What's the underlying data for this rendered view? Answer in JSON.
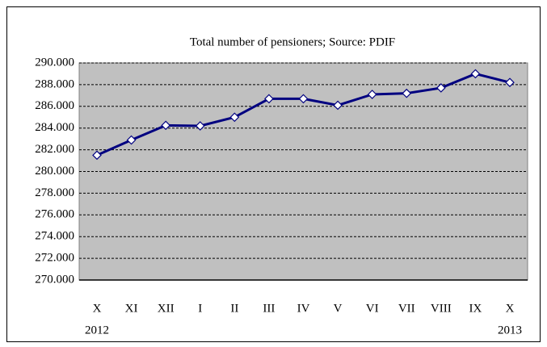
{
  "chart_data": {
    "type": "line",
    "title": "Total number of pensioners; Source: PDIF",
    "categories": [
      "X",
      "XI",
      "XII",
      "I",
      "II",
      "III",
      "IV",
      "V",
      "VI",
      "VII",
      "VIII",
      "IX",
      "X"
    ],
    "year_labels": [
      "2012",
      null,
      null,
      null,
      null,
      null,
      null,
      null,
      null,
      null,
      null,
      null,
      "2013"
    ],
    "series": [
      {
        "name": "Total number of pensioners",
        "color": "#000080",
        "values": [
          281500,
          282900,
          284250,
          284200,
          285000,
          286700,
          286700,
          286100,
          287100,
          287200,
          287700,
          289000,
          288200
        ]
      }
    ],
    "ylim": [
      270000,
      290000
    ],
    "yticks": [
      {
        "value": 270000,
        "label": "270.000"
      },
      {
        "value": 272000,
        "label": "272.000"
      },
      {
        "value": 274000,
        "label": "274.000"
      },
      {
        "value": 276000,
        "label": "276.000"
      },
      {
        "value": 278000,
        "label": "278.000"
      },
      {
        "value": 280000,
        "label": "280.000"
      },
      {
        "value": 282000,
        "label": "282.000"
      },
      {
        "value": 284000,
        "label": "284.000"
      },
      {
        "value": 286000,
        "label": "286.000"
      },
      {
        "value": 288000,
        "label": "288.000"
      },
      {
        "value": 290000,
        "label": "290.000"
      }
    ],
    "grid": true,
    "plot_background": "#c0c0c0"
  }
}
